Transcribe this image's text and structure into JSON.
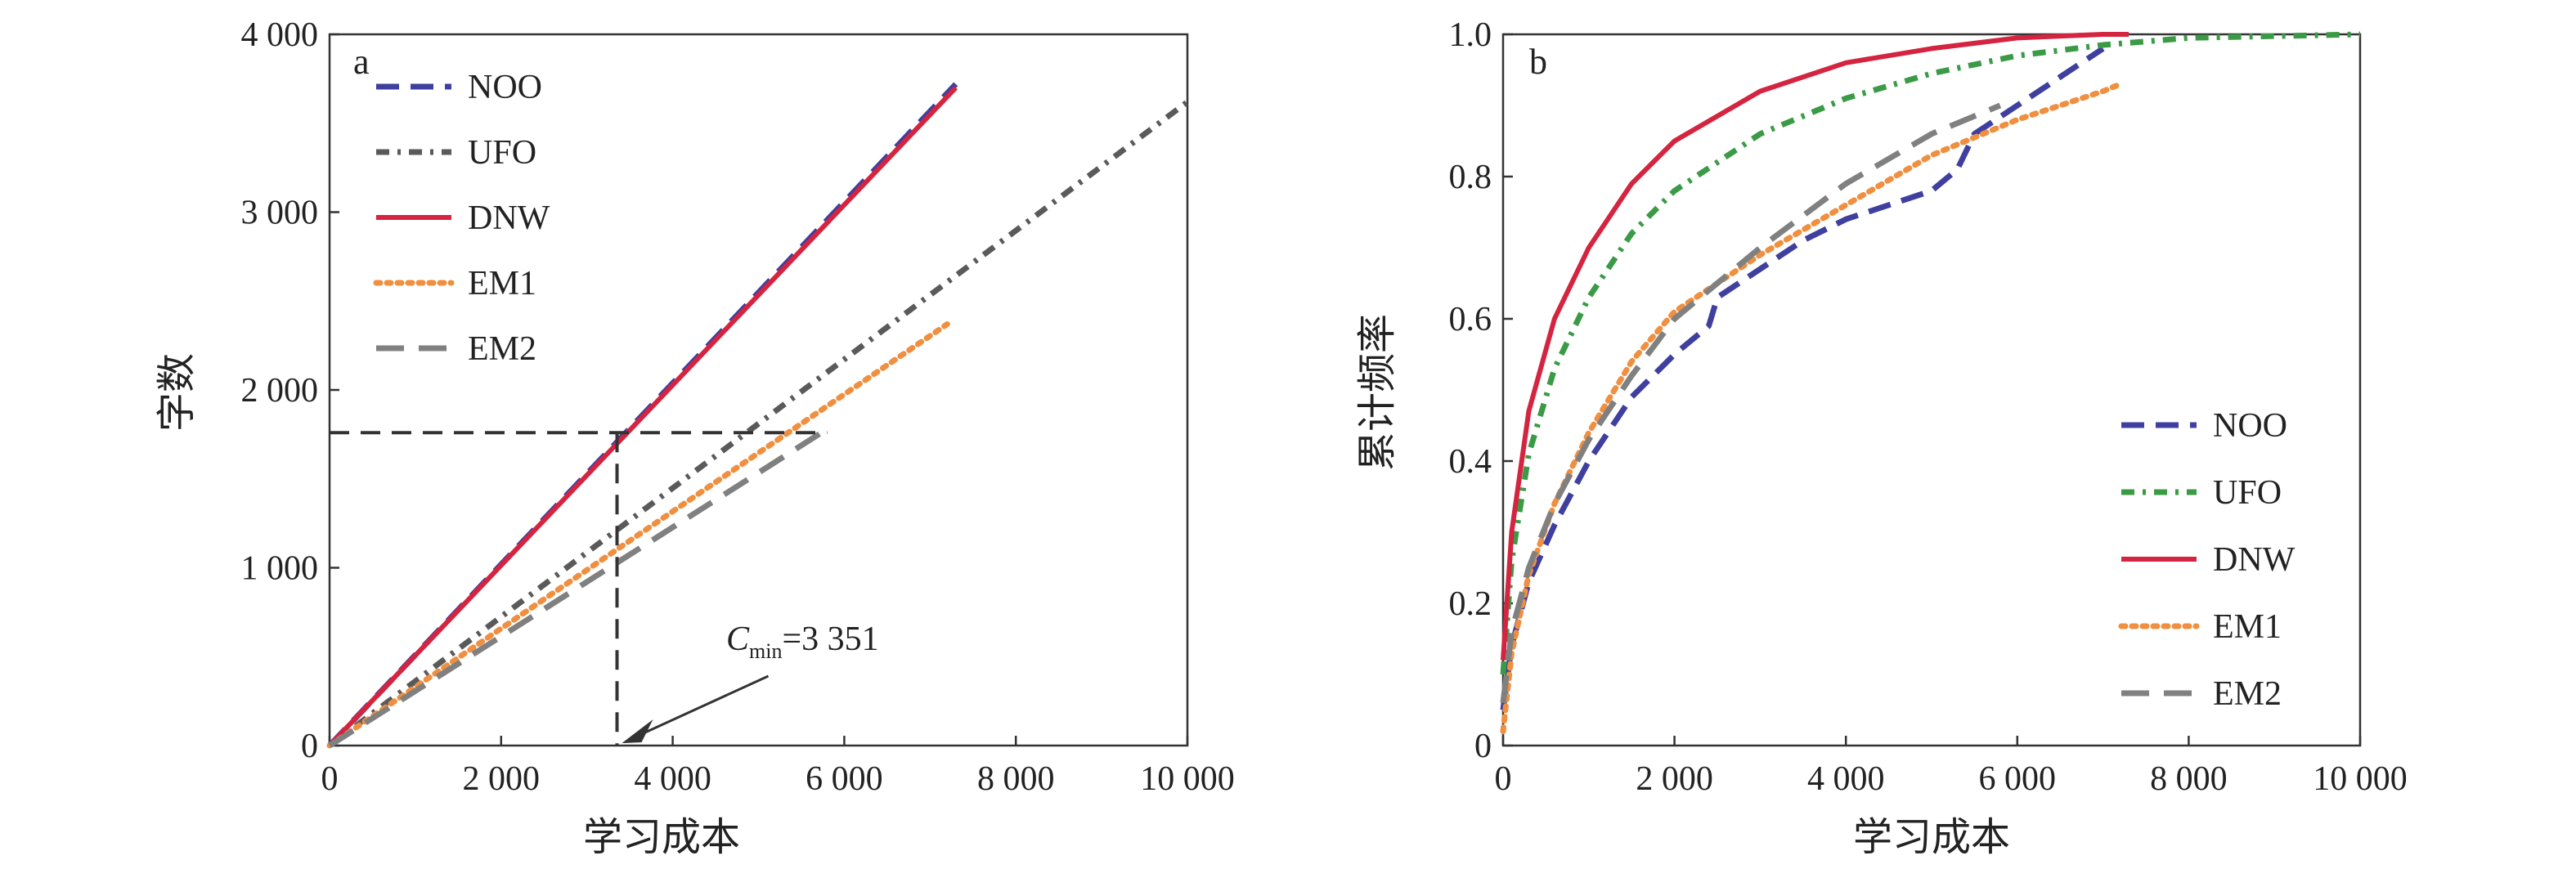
{
  "chart_data": [
    {
      "panel_label": "a",
      "type": "line",
      "xlabel": "学习成本",
      "ylabel": "字数",
      "xlim": [
        0,
        10000
      ],
      "ylim": [
        0,
        4000
      ],
      "x_ticks": [
        0,
        2000,
        4000,
        6000,
        8000,
        10000
      ],
      "x_tick_labels": [
        "0",
        "2 000",
        "4 000",
        "6 000",
        "8 000",
        "10 000"
      ],
      "y_ticks": [
        0,
        1000,
        2000,
        3000,
        4000
      ],
      "y_tick_labels": [
        "0",
        "1 000",
        "2 000",
        "3 000",
        "4 000"
      ],
      "grid": false,
      "legend_position": "top-left",
      "series": [
        {
          "name": "NOO",
          "color": "#3f3f9f",
          "dash": "dashed",
          "x": [
            0,
            7300
          ],
          "y": [
            0,
            3720
          ]
        },
        {
          "name": "UFO",
          "color": "#5a5a5a",
          "dash": "dash-dot",
          "x": [
            0,
            10000
          ],
          "y": [
            0,
            3620
          ]
        },
        {
          "name": "DNW",
          "color": "#d4243f",
          "dash": "solid",
          "x": [
            0,
            7300
          ],
          "y": [
            0,
            3700
          ]
        },
        {
          "name": "EM1",
          "color": "#ef8f3f",
          "dash": "dotted",
          "x": [
            0,
            7200
          ],
          "y": [
            0,
            2370
          ]
        },
        {
          "name": "EM2",
          "color": "#808080",
          "dash": "long-dash",
          "x": [
            0,
            5800
          ],
          "y": [
            0,
            1780
          ]
        }
      ],
      "reference_lines": {
        "x": 3351,
        "y": 1760,
        "x_end": 5800
      },
      "annotation": {
        "text_italic": "C",
        "text_sub": "min",
        "text_rest": "=3 351",
        "points_to": [
          3351,
          0
        ]
      }
    },
    {
      "panel_label": "b",
      "type": "line",
      "xlabel": "学习成本",
      "ylabel": "累计频率",
      "xlim": [
        0,
        10000
      ],
      "ylim": [
        0,
        1.0
      ],
      "x_ticks": [
        0,
        2000,
        4000,
        6000,
        8000,
        10000
      ],
      "x_tick_labels": [
        "0",
        "2 000",
        "4 000",
        "6 000",
        "8 000",
        "10 000"
      ],
      "y_ticks": [
        0,
        0.2,
        0.4,
        0.6,
        0.8,
        1.0
      ],
      "y_tick_labels": [
        "0",
        "0.2",
        "0.4",
        "0.6",
        "0.8",
        "1.0"
      ],
      "grid": false,
      "legend_position": "bottom-right",
      "series": [
        {
          "name": "NOO",
          "color": "#3f3f9f",
          "dash": "dashed",
          "x": [
            0,
            100,
            300,
            600,
            1000,
            1500,
            2000,
            2400,
            2500,
            3000,
            3500,
            4000,
            4500,
            5000,
            5300,
            5500,
            6000,
            6500,
            7000
          ],
          "y": [
            0.05,
            0.14,
            0.23,
            0.31,
            0.4,
            0.49,
            0.55,
            0.59,
            0.63,
            0.67,
            0.71,
            0.74,
            0.76,
            0.78,
            0.81,
            0.86,
            0.9,
            0.94,
            0.98
          ]
        },
        {
          "name": "UFO",
          "color": "#3a9a46",
          "dash": "dash-dot",
          "x": [
            0,
            100,
            300,
            600,
            1000,
            1500,
            2000,
            3000,
            4000,
            5000,
            6000,
            7000,
            8000,
            10000
          ],
          "y": [
            0.1,
            0.26,
            0.41,
            0.53,
            0.63,
            0.72,
            0.78,
            0.86,
            0.91,
            0.945,
            0.97,
            0.985,
            0.995,
            1.0
          ]
        },
        {
          "name": "DNW",
          "color": "#d4243f",
          "dash": "solid",
          "x": [
            0,
            100,
            300,
            600,
            1000,
            1500,
            2000,
            3000,
            4000,
            5000,
            6000,
            7000,
            7300
          ],
          "y": [
            0.12,
            0.3,
            0.47,
            0.6,
            0.7,
            0.79,
            0.85,
            0.92,
            0.96,
            0.98,
            0.995,
            1.0,
            1.0
          ]
        },
        {
          "name": "EM1",
          "color": "#ef8f3f",
          "dash": "dotted",
          "x": [
            0,
            100,
            300,
            600,
            1000,
            1500,
            2000,
            3000,
            4000,
            5000,
            6000,
            7000,
            7200
          ],
          "y": [
            0.02,
            0.13,
            0.24,
            0.34,
            0.44,
            0.54,
            0.61,
            0.69,
            0.76,
            0.83,
            0.88,
            0.92,
            0.93
          ]
        },
        {
          "name": "EM2",
          "color": "#808080",
          "dash": "long-dash",
          "x": [
            0,
            100,
            300,
            600,
            1000,
            1500,
            2000,
            3000,
            4000,
            5000,
            5800
          ],
          "y": [
            0.06,
            0.16,
            0.25,
            0.34,
            0.43,
            0.52,
            0.6,
            0.7,
            0.79,
            0.86,
            0.9
          ]
        }
      ]
    }
  ]
}
